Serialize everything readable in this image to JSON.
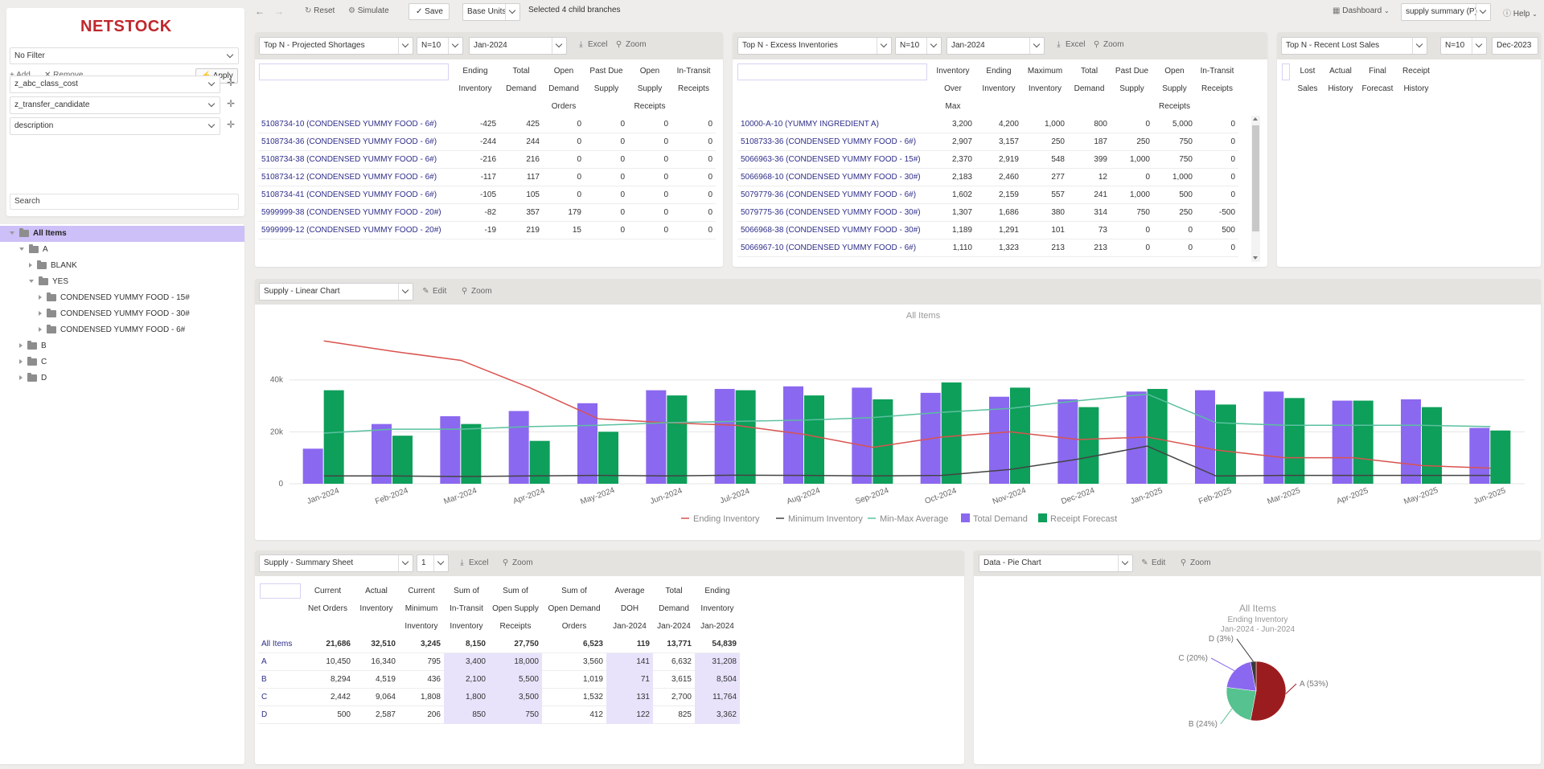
{
  "app": {
    "logo": "NETSTOCK"
  },
  "topbar": {
    "reset_label": "Reset",
    "simulate_label": "Simulate",
    "save_label": "Save",
    "units_value": "Base Units",
    "selection_info": "Selected 4 child branches",
    "dashboard_label": "Dashboard",
    "layout_value": "supply summary (P)",
    "help_label": "Help"
  },
  "sidebar": {
    "filter_value": "No Filter",
    "add_label": "Add",
    "remove_label": "Remove",
    "apply_label": "Apply",
    "filter_fields": [
      "z_abc_class_cost",
      "z_transfer_candidate",
      "description"
    ],
    "search_placeholder": "Search",
    "tree": [
      {
        "label": "All Items",
        "level": 0,
        "open": true,
        "selected": true
      },
      {
        "label": "A",
        "level": 1,
        "open": true
      },
      {
        "label": "BLANK",
        "level": 2,
        "open": false
      },
      {
        "label": "YES",
        "level": 2,
        "open": true
      },
      {
        "label": "CONDENSED YUMMY FOOD - 15#",
        "level": 3,
        "open": false
      },
      {
        "label": "CONDENSED YUMMY FOOD - 30#",
        "level": 3,
        "open": false
      },
      {
        "label": "CONDENSED YUMMY FOOD - 6#",
        "level": 3,
        "open": false
      },
      {
        "label": "B",
        "level": 1,
        "open": false
      },
      {
        "label": "C",
        "level": 1,
        "open": false
      },
      {
        "label": "D",
        "level": 1,
        "open": false
      }
    ]
  },
  "shortages": {
    "widget": "Top N - Projected Shortages",
    "n": "N=10",
    "period": "Jan-2024",
    "excel": "Excel",
    "zoom": "Zoom",
    "headers": [
      [
        "Ending",
        "Inventory"
      ],
      [
        "Total",
        "Demand"
      ],
      [
        "Open",
        "Demand",
        "Orders"
      ],
      [
        "Past Due",
        "Supply"
      ],
      [
        "Open",
        "Supply",
        "Receipts"
      ],
      [
        "In-Transit",
        "Receipts"
      ]
    ],
    "rows": [
      {
        "label": "5108734-10 (CONDENSED YUMMY FOOD - 6#)",
        "values": [
          "-425",
          "425",
          "0",
          "0",
          "0",
          "0"
        ]
      },
      {
        "label": "5108734-36 (CONDENSED YUMMY FOOD - 6#)",
        "values": [
          "-244",
          "244",
          "0",
          "0",
          "0",
          "0"
        ]
      },
      {
        "label": "5108734-38 (CONDENSED YUMMY FOOD - 6#)",
        "values": [
          "-216",
          "216",
          "0",
          "0",
          "0",
          "0"
        ]
      },
      {
        "label": "5108734-12 (CONDENSED YUMMY FOOD - 6#)",
        "values": [
          "-117",
          "117",
          "0",
          "0",
          "0",
          "0"
        ]
      },
      {
        "label": "5108734-41 (CONDENSED YUMMY FOOD - 6#)",
        "values": [
          "-105",
          "105",
          "0",
          "0",
          "0",
          "0"
        ]
      },
      {
        "label": "5999999-38 (CONDENSED YUMMY FOOD - 20#)",
        "values": [
          "-82",
          "357",
          "179",
          "0",
          "0",
          "0"
        ]
      },
      {
        "label": "5999999-12 (CONDENSED YUMMY FOOD - 20#)",
        "values": [
          "-19",
          "219",
          "15",
          "0",
          "0",
          "0"
        ]
      }
    ]
  },
  "excess": {
    "widget": "Top N - Excess Inventories",
    "n": "N=10",
    "period": "Jan-2024",
    "excel": "Excel",
    "zoom": "Zoom",
    "headers": [
      [
        "Inventory",
        "Over",
        "Max"
      ],
      [
        "Ending",
        "Inventory"
      ],
      [
        "Maximum",
        "Inventory"
      ],
      [
        "Total",
        "Demand"
      ],
      [
        "Past Due",
        "Supply"
      ],
      [
        "Open",
        "Supply",
        "Receipts"
      ],
      [
        "In-Transit",
        "Receipts"
      ]
    ],
    "rows": [
      {
        "label": "10000-A-10 (YUMMY INGREDIENT A)",
        "values": [
          "3,200",
          "4,200",
          "1,000",
          "800",
          "0",
          "5,000",
          "0"
        ]
      },
      {
        "label": "5108733-36 (CONDENSED YUMMY FOOD - 6#)",
        "values": [
          "2,907",
          "3,157",
          "250",
          "187",
          "250",
          "750",
          "0"
        ]
      },
      {
        "label": "5066963-36 (CONDENSED YUMMY FOOD - 15#)",
        "values": [
          "2,370",
          "2,919",
          "548",
          "399",
          "1,000",
          "750",
          "0"
        ]
      },
      {
        "label": "5066968-10 (CONDENSED YUMMY FOOD - 30#)",
        "values": [
          "2,183",
          "2,460",
          "277",
          "12",
          "0",
          "1,000",
          "0"
        ]
      },
      {
        "label": "5079779-36 (CONDENSED YUMMY FOOD - 6#)",
        "values": [
          "1,602",
          "2,159",
          "557",
          "241",
          "1,000",
          "500",
          "0"
        ]
      },
      {
        "label": "5079775-36 (CONDENSED YUMMY FOOD - 30#)",
        "values": [
          "1,307",
          "1,686",
          "380",
          "314",
          "750",
          "250",
          "-500"
        ]
      },
      {
        "label": "5066968-38 (CONDENSED YUMMY FOOD - 30#)",
        "values": [
          "1,189",
          "1,291",
          "101",
          "73",
          "0",
          "0",
          "500"
        ]
      },
      {
        "label": "5066967-10 (CONDENSED YUMMY FOOD - 6#)",
        "values": [
          "1,110",
          "1,323",
          "213",
          "213",
          "0",
          "0",
          "0"
        ]
      }
    ]
  },
  "lostsales": {
    "widget": "Top N - Recent Lost Sales",
    "n": "N=10",
    "period": "Dec-2023",
    "headers": [
      [
        "Lost",
        "Sales"
      ],
      [
        "Actual",
        "History"
      ],
      [
        "Final",
        "Forecast"
      ],
      [
        "Receipt",
        "History"
      ]
    ]
  },
  "linechart_widget": {
    "widget": "Supply - Linear Chart",
    "edit": "Edit",
    "zoom": "Zoom"
  },
  "summary": {
    "widget": "Supply - Summary Sheet",
    "level": "1",
    "excel": "Excel",
    "zoom": "Zoom",
    "headers": [
      [
        "Current",
        "Net Orders"
      ],
      [
        "Actual",
        "Inventory"
      ],
      [
        "Current",
        "Minimum",
        "Inventory"
      ],
      [
        "Sum of",
        "In-Transit",
        "Inventory"
      ],
      [
        "Sum of",
        "Open Supply",
        "Receipts"
      ],
      [
        "Sum of",
        "Open Demand",
        "Orders"
      ],
      [
        "Average",
        "DOH",
        "Jan-2024"
      ],
      [
        "Total",
        "Demand",
        "Jan-2024"
      ],
      [
        "Ending",
        "Inventory",
        "Jan-2024"
      ]
    ],
    "rows": [
      {
        "label": "All Items",
        "values": [
          "21,686",
          "32,510",
          "3,245",
          "8,150",
          "27,750",
          "6,523",
          "119",
          "13,771",
          "54,839"
        ]
      },
      {
        "label": "A",
        "values": [
          "10,450",
          "16,340",
          "795",
          "3,400",
          "18,000",
          "3,560",
          "141",
          "6,632",
          "31,208"
        ]
      },
      {
        "label": "B",
        "values": [
          "8,294",
          "4,519",
          "436",
          "2,100",
          "5,500",
          "1,019",
          "71",
          "3,615",
          "8,504"
        ]
      },
      {
        "label": "C",
        "values": [
          "2,442",
          "9,064",
          "1,808",
          "1,800",
          "3,500",
          "1,532",
          "131",
          "2,700",
          "11,764"
        ]
      },
      {
        "label": "D",
        "values": [
          "500",
          "2,587",
          "206",
          "850",
          "750",
          "412",
          "122",
          "825",
          "3,362"
        ]
      }
    ]
  },
  "pie_widget": {
    "widget": "Data - Pie Chart",
    "edit": "Edit",
    "zoom": "Zoom"
  },
  "chart_data": [
    {
      "type": "bar",
      "title": "All Items",
      "categories": [
        "Jan-2024",
        "Feb-2024",
        "Mar-2024",
        "Apr-2024",
        "May-2024",
        "Jun-2024",
        "Jul-2024",
        "Aug-2024",
        "Sep-2024",
        "Oct-2024",
        "Nov-2024",
        "Dec-2024",
        "Jan-2025",
        "Feb-2025",
        "Mar-2025",
        "Apr-2025",
        "May-2025",
        "Jun-2025"
      ],
      "ylim": [
        0,
        56000
      ],
      "yticks": [
        "0",
        "20k",
        "40k"
      ],
      "grid": true,
      "legend": "bottom",
      "series": [
        {
          "name": "Ending Inventory",
          "kind": "line",
          "color": "#d9534f",
          "values": [
            55000,
            51000,
            47500,
            37000,
            25000,
            23500,
            22500,
            19000,
            14000,
            18000,
            20000,
            17000,
            18000,
            13000,
            10000,
            10000,
            7000,
            6000
          ]
        },
        {
          "name": "Minimum Inventory",
          "kind": "line",
          "color": "#444444",
          "values": [
            3000,
            3000,
            2800,
            3000,
            3200,
            3000,
            3300,
            3200,
            3000,
            3200,
            5500,
            9500,
            14500,
            3000,
            3200,
            3200,
            3200,
            3200
          ]
        },
        {
          "name": "Min-Max Average",
          "kind": "line",
          "color": "#5bc0a0",
          "values": [
            19500,
            21000,
            21000,
            22000,
            22500,
            23500,
            24000,
            24500,
            25500,
            27500,
            29000,
            32000,
            34500,
            23500,
            22500,
            22500,
            22500,
            22000
          ]
        },
        {
          "name": "Total Demand",
          "kind": "bar",
          "color": "#8b68f0",
          "values": [
            13500,
            23000,
            26000,
            28000,
            31000,
            36000,
            36500,
            37500,
            37000,
            35000,
            33500,
            32500,
            35500,
            36000,
            35500,
            32000,
            32500,
            21500
          ]
        },
        {
          "name": "Receipt Forecast",
          "kind": "bar",
          "color": "#0e9f5a",
          "values": [
            36000,
            18500,
            23000,
            16500,
            20000,
            34000,
            36000,
            34000,
            32500,
            39000,
            37000,
            29500,
            36500,
            30500,
            33000,
            32000,
            29500,
            20500
          ]
        }
      ]
    },
    {
      "type": "pie",
      "title": "All Items",
      "subtitle": "Ending Inventory",
      "subtitle2": "Jan-2024 - Jun-2024",
      "slices": [
        {
          "label": "A (53%)",
          "value": 53,
          "color": "#9b1c1f"
        },
        {
          "label": "B (24%)",
          "value": 24,
          "color": "#55c28f"
        },
        {
          "label": "C (20%)",
          "value": 20,
          "color": "#8b68f0"
        },
        {
          "label": "D (3%)",
          "value": 3,
          "color": "#3a3a3a"
        }
      ]
    }
  ]
}
